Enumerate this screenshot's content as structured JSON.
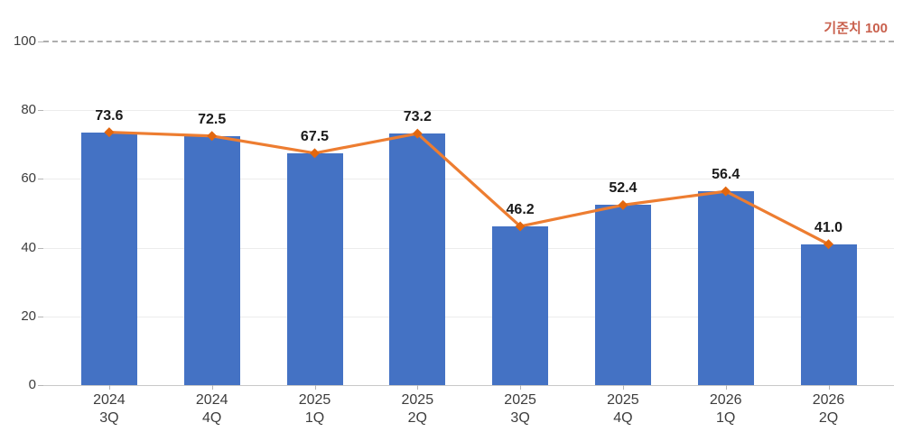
{
  "chart_data": {
    "type": "bar",
    "title": "",
    "xlabel": "",
    "ylabel": "",
    "categories": [
      [
        "2024",
        "3Q"
      ],
      [
        "2024",
        "4Q"
      ],
      [
        "2025",
        "1Q"
      ],
      [
        "2025",
        "2Q"
      ],
      [
        "2025",
        "3Q"
      ],
      [
        "2025",
        "4Q"
      ],
      [
        "2026",
        "1Q"
      ],
      [
        "2026",
        "2Q"
      ]
    ],
    "values": [
      73.6,
      72.5,
      67.5,
      73.2,
      46.2,
      52.4,
      56.4,
      41.0
    ],
    "value_labels": [
      "73.6",
      "72.5",
      "67.5",
      "73.2",
      "46.2",
      "52.4",
      "56.4",
      "41.0"
    ],
    "line_overlay": true,
    "reference_line": {
      "value": 100,
      "label": "기준치 100"
    },
    "y_axis": {
      "min": 0,
      "max": 100,
      "ticks": [
        0,
        20,
        40,
        60,
        80,
        100
      ]
    },
    "legend": "none",
    "grid": "horizontal",
    "colors": {
      "bar": "#4472c4",
      "line": "#ed7d31",
      "marker": "#e2670f",
      "reference_line": "#aeaeae",
      "reference_label": "#c9604d",
      "grid": "#ececec",
      "axis_line": "#c9c9c9",
      "tick": "#b5b5b5",
      "value_text": "#1a1a1a",
      "axis_text": "#3d3d3d"
    }
  }
}
